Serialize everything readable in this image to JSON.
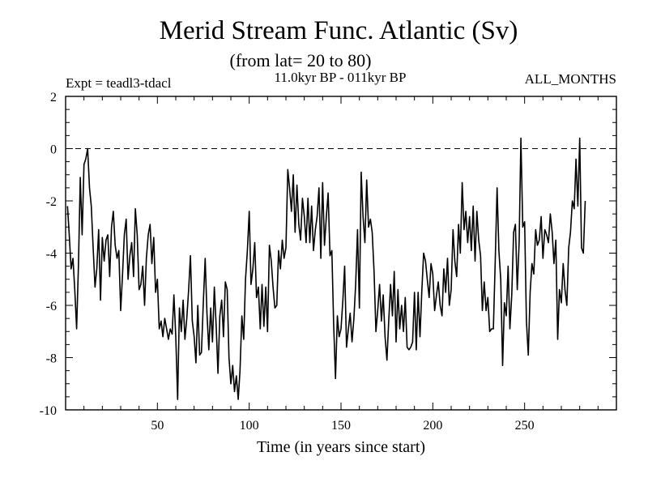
{
  "chart_data": {
    "type": "line",
    "title": "Merid Stream Func. Atlantic (Sv)",
    "subtitle": "(from lat= 20 to 80)",
    "experiment_label": "Expt = teadl3-tdacl",
    "period_label": "11.0kyr BP - 011kyr BP",
    "months_label": "ALL_MONTHS",
    "xlabel": "Time (in years since start)",
    "ylabel": "",
    "xlim": [
      0,
      300
    ],
    "ylim": [
      -10,
      2
    ],
    "x_ticks": [
      50,
      100,
      150,
      200,
      250
    ],
    "y_ticks": [
      2,
      0,
      -2,
      -4,
      -6,
      -8,
      -10
    ],
    "reference_line": {
      "y": 0,
      "style": "dashed"
    },
    "series": [
      {
        "name": "Merid Stream Func. Atlantic",
        "x_start": 1,
        "x_step": 1,
        "values": [
          -2.2,
          -3.3,
          -4.6,
          -4.2,
          -5.4,
          -6.9,
          -4.4,
          -1.1,
          -3.3,
          -0.6,
          -0.4,
          0.0,
          -1.5,
          -2.2,
          -3.8,
          -5.3,
          -4.6,
          -3.1,
          -5.8,
          -3.4,
          -4.3,
          -3.5,
          -3.3,
          -4.9,
          -3.0,
          -2.4,
          -3.7,
          -4.2,
          -3.9,
          -6.2,
          -4.8,
          -3.3,
          -2.7,
          -5.0,
          -4.1,
          -3.6,
          -4.9,
          -2.3,
          -3.3,
          -5.4,
          -5.2,
          -4.5,
          -6.0,
          -4.2,
          -3.3,
          -2.9,
          -4.4,
          -3.4,
          -5.5,
          -5.0,
          -6.9,
          -6.6,
          -7.2,
          -6.5,
          -6.9,
          -7.3,
          -6.9,
          -7.1,
          -5.6,
          -7.2,
          -9.6,
          -6.1,
          -7.0,
          -5.8,
          -7.3,
          -6.5,
          -5.4,
          -4.1,
          -6.6,
          -7.2,
          -8.2,
          -6.0,
          -7.9,
          -7.8,
          -5.9,
          -4.2,
          -6.3,
          -7.7,
          -6.1,
          -7.4,
          -5.3,
          -6.8,
          -8.6,
          -6.4,
          -5.8,
          -7.2,
          -5.1,
          -5.4,
          -8.0,
          -9.0,
          -8.3,
          -9.3,
          -8.7,
          -9.6,
          -8.5,
          -6.4,
          -7.3,
          -5.0,
          -3.9,
          -2.4,
          -5.2,
          -4.6,
          -3.6,
          -5.7,
          -5.3,
          -6.9,
          -5.2,
          -6.8,
          -5.3,
          -7.0,
          -3.7,
          -4.3,
          -5.3,
          -6.1,
          -6.0,
          -3.9,
          -4.6,
          -3.5,
          -4.2,
          -3.8,
          -0.8,
          -1.5,
          -2.4,
          -1.0,
          -3.2,
          -1.4,
          -2.9,
          -3.5,
          -1.9,
          -2.6,
          -3.6,
          -1.9,
          -3.6,
          -2.2,
          -3.9,
          -3.1,
          -2.6,
          -1.5,
          -4.2,
          -1.3,
          -3.7,
          -2.6,
          -1.7,
          -4.1,
          -3.9,
          -6.7,
          -8.8,
          -6.4,
          -7.2,
          -6.9,
          -5.8,
          -4.5,
          -7.6,
          -6.9,
          -6.3,
          -7.4,
          -6.5,
          -5.2,
          -3.1,
          -6.1,
          -0.9,
          -2.6,
          -3.6,
          -1.2,
          -3.0,
          -2.7,
          -3.2,
          -4.7,
          -7.0,
          -6.2,
          -5.2,
          -6.6,
          -5.6,
          -7.2,
          -8.1,
          -6.6,
          -5.2,
          -6.4,
          -4.7,
          -7.4,
          -5.4,
          -6.9,
          -6.0,
          -7.0,
          -5.7,
          -7.6,
          -7.7,
          -7.6,
          -7.4,
          -5.5,
          -7.7,
          -5.5,
          -7.2,
          -5.5,
          -4.0,
          -4.3,
          -5.0,
          -5.7,
          -4.4,
          -4.8,
          -6.2,
          -5.6,
          -5.1,
          -6.0,
          -6.4,
          -4.6,
          -5.5,
          -4.2,
          -6.0,
          -5.4,
          -3.1,
          -4.3,
          -4.9,
          -2.9,
          -4.0,
          -1.3,
          -3.1,
          -2.4,
          -3.6,
          -2.6,
          -3.9,
          -2.2,
          -4.3,
          -2.4,
          -3.5,
          -4.1,
          -6.2,
          -5.1,
          -6.2,
          -5.7,
          -7.0,
          -6.9,
          -6.9,
          -4.3,
          -1.5,
          -3.9,
          -5.0,
          -8.3,
          -5.9,
          -6.4,
          -4.5,
          -6.9,
          -5.6,
          -3.2,
          -2.9,
          -5.4,
          -3.6,
          0.4,
          -3.0,
          -2.8,
          -6.6,
          -7.9,
          -5.5,
          -4.4,
          -4.8,
          -3.1,
          -3.7,
          -3.5,
          -2.6,
          -4.2,
          -3.1,
          -3.3,
          -3.6,
          -2.5,
          -3.2,
          -4.4,
          -3.5,
          -7.3,
          -5.4,
          -5.9,
          -4.4,
          -5.4,
          -6.0,
          -3.8,
          -3.2,
          -2.0,
          -2.3,
          -0.4,
          -2.2,
          0.4,
          -3.8,
          -4.0,
          -2.0
        ]
      }
    ]
  }
}
